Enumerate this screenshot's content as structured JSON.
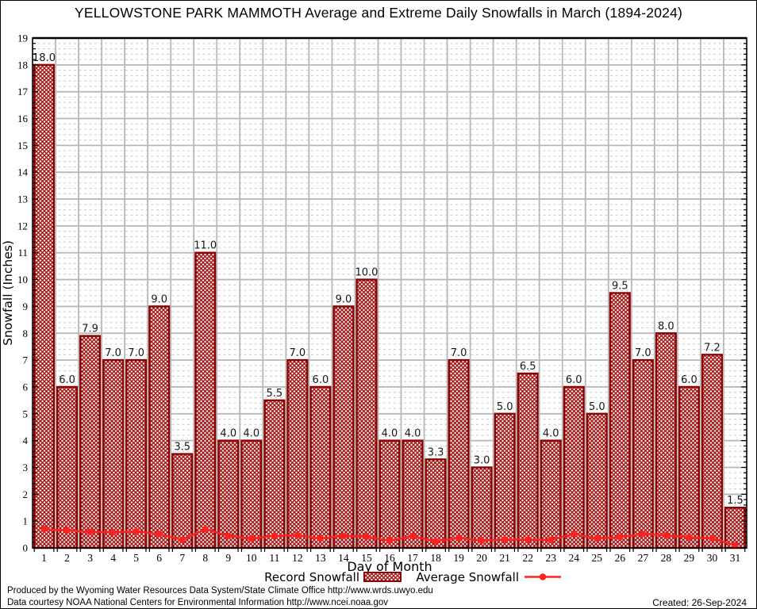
{
  "page": {
    "footer": {
      "line1": "Produced by the Wyoming Water Resources Data System/State Climate Office http://www.wrds.uwyo.edu",
      "line2": "Data courtesy NOAA National Centers for Environmental Information http://www.ncei.noaa.gov",
      "created": "Created: 26-Sep-2024"
    }
  },
  "chart_data": {
    "type": "bar",
    "title": "YELLOWSTONE PARK MAMMOTH Average and Extreme Daily Snowfalls in March (1894-2024)",
    "xlabel": "Day of Month",
    "ylabel": "Snowfall (Inches)",
    "ylim": [
      0,
      19
    ],
    "y_major_step": 1,
    "y_minor_step": 0.2,
    "grid": "major-solid-both-axes, minor-dashed-horizontal",
    "legend_position": "bottom",
    "categories": [
      1,
      2,
      3,
      4,
      5,
      6,
      7,
      8,
      9,
      10,
      11,
      12,
      13,
      14,
      15,
      16,
      17,
      18,
      19,
      20,
      21,
      22,
      23,
      24,
      25,
      26,
      27,
      28,
      29,
      30,
      31
    ],
    "series": [
      {
        "name": "Record Snowfall",
        "type": "bar",
        "fill_style": "crosshatch",
        "edge_color": "#8b0000",
        "hatch_color": "#a31111",
        "values": [
          18.0,
          6.0,
          7.9,
          7.0,
          7.0,
          9.0,
          3.5,
          11.0,
          4.0,
          4.0,
          5.5,
          7.0,
          6.0,
          9.0,
          10.0,
          4.0,
          4.0,
          3.3,
          7.0,
          3.0,
          5.0,
          6.5,
          4.0,
          6.0,
          5.0,
          9.5,
          7.0,
          8.0,
          6.0,
          7.2,
          1.5
        ],
        "value_labels": [
          "18.0",
          "6.0",
          "7.9",
          "7.0",
          "7.0",
          "9.0",
          "3.5",
          "11.0",
          "4.0",
          "4.0",
          "5.5",
          "7.0",
          "6.0",
          "9.0",
          "10.0",
          "4.0",
          "4.0",
          "3.3",
          "7.0",
          "3.0",
          "5.0",
          "6.5",
          "4.0",
          "6.0",
          "5.0",
          "9.5",
          "7.0",
          "8.0",
          "6.0",
          "7.2",
          "1.5"
        ]
      },
      {
        "name": "Average Snowfall",
        "type": "line",
        "color": "#ff2020",
        "marker": "dot",
        "values": [
          0.7,
          0.65,
          0.6,
          0.58,
          0.62,
          0.52,
          0.3,
          0.7,
          0.45,
          0.35,
          0.45,
          0.48,
          0.35,
          0.45,
          0.42,
          0.27,
          0.44,
          0.25,
          0.37,
          0.27,
          0.32,
          0.31,
          0.3,
          0.52,
          0.35,
          0.4,
          0.52,
          0.47,
          0.4,
          0.35,
          0.1
        ]
      }
    ],
    "axis_colors": {
      "grid_major": "#b8b8b8",
      "grid_minor": "#cfcfcf",
      "axis": "#000000",
      "label_text": "#1a1a1a"
    }
  }
}
